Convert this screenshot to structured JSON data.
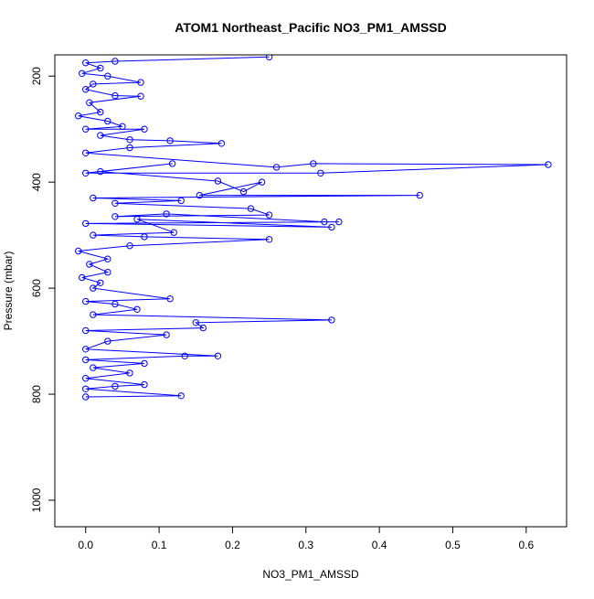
{
  "chart_data": {
    "type": "line",
    "title": "ATOM1 Northeast_Pacific NO3_PM1_AMSSD",
    "xlabel": "NO3_PM1_AMSSD",
    "ylabel": "Pressure (mbar)",
    "xlim": [
      -0.042,
      0.655
    ],
    "ylim": [
      1050,
      160
    ],
    "y_reversed": true,
    "grid": false,
    "x_ticks": [
      0.0,
      0.1,
      0.2,
      0.3,
      0.4,
      0.5,
      0.6
    ],
    "x_tick_labels": [
      "0.0",
      "0.1",
      "0.2",
      "0.3",
      "0.4",
      "0.5",
      "0.6"
    ],
    "y_ticks": [
      200,
      400,
      600,
      800,
      1000
    ],
    "y_tick_labels": [
      "200",
      "400",
      "600",
      "800",
      "1000"
    ],
    "series": [
      {
        "color": "#0000ff",
        "marker": "open-circle",
        "points": [
          [
            0.25,
            164
          ],
          [
            0.04,
            172
          ],
          [
            0.0,
            175
          ],
          [
            0.02,
            185
          ],
          [
            -0.005,
            195
          ],
          [
            0.03,
            200
          ],
          [
            0.075,
            212
          ],
          [
            0.01,
            215
          ],
          [
            0.0,
            225
          ],
          [
            0.04,
            237
          ],
          [
            0.075,
            238
          ],
          [
            0.005,
            250
          ],
          [
            0.02,
            268
          ],
          [
            -0.01,
            275
          ],
          [
            0.03,
            285
          ],
          [
            0.05,
            295
          ],
          [
            0.0,
            300
          ],
          [
            0.08,
            300
          ],
          [
            0.02,
            312
          ],
          [
            0.06,
            320
          ],
          [
            0.115,
            322
          ],
          [
            0.185,
            327
          ],
          [
            0.06,
            335
          ],
          [
            0.0,
            345
          ],
          [
            0.26,
            372
          ],
          [
            0.31,
            365
          ],
          [
            0.63,
            367
          ],
          [
            0.32,
            383
          ],
          [
            0.0,
            383
          ],
          [
            0.118,
            365
          ],
          [
            0.02,
            380
          ],
          [
            0.18,
            398
          ],
          [
            0.215,
            418
          ],
          [
            0.24,
            400
          ],
          [
            0.155,
            425
          ],
          [
            0.455,
            425
          ],
          [
            0.01,
            430
          ],
          [
            0.13,
            435
          ],
          [
            0.04,
            440
          ],
          [
            0.225,
            450
          ],
          [
            0.25,
            462
          ],
          [
            0.04,
            465
          ],
          [
            0.11,
            460
          ],
          [
            0.325,
            475
          ],
          [
            0.345,
            475
          ],
          [
            0.0,
            478
          ],
          [
            0.335,
            485
          ],
          [
            0.07,
            470
          ],
          [
            0.12,
            495
          ],
          [
            0.01,
            500
          ],
          [
            0.08,
            503
          ],
          [
            0.25,
            508
          ],
          [
            0.06,
            520
          ],
          [
            -0.01,
            530
          ],
          [
            0.03,
            545
          ],
          [
            0.005,
            555
          ],
          [
            0.03,
            570
          ],
          [
            -0.005,
            580
          ],
          [
            0.02,
            590
          ],
          [
            0.01,
            600
          ],
          [
            0.115,
            620
          ],
          [
            0.0,
            625
          ],
          [
            0.04,
            630
          ],
          [
            0.07,
            640
          ],
          [
            0.01,
            650
          ],
          [
            0.335,
            660
          ],
          [
            0.15,
            665
          ],
          [
            0.16,
            675
          ],
          [
            0.0,
            680
          ],
          [
            0.11,
            688
          ],
          [
            0.03,
            700
          ],
          [
            0.0,
            715
          ],
          [
            0.18,
            728
          ],
          [
            0.135,
            728
          ],
          [
            0.0,
            735
          ],
          [
            0.08,
            742
          ],
          [
            0.01,
            750
          ],
          [
            0.06,
            760
          ],
          [
            0.0,
            770
          ],
          [
            0.08,
            782
          ],
          [
            0.04,
            785
          ],
          [
            0.0,
            790
          ],
          [
            0.13,
            803
          ],
          [
            0.0,
            805
          ]
        ]
      }
    ]
  }
}
